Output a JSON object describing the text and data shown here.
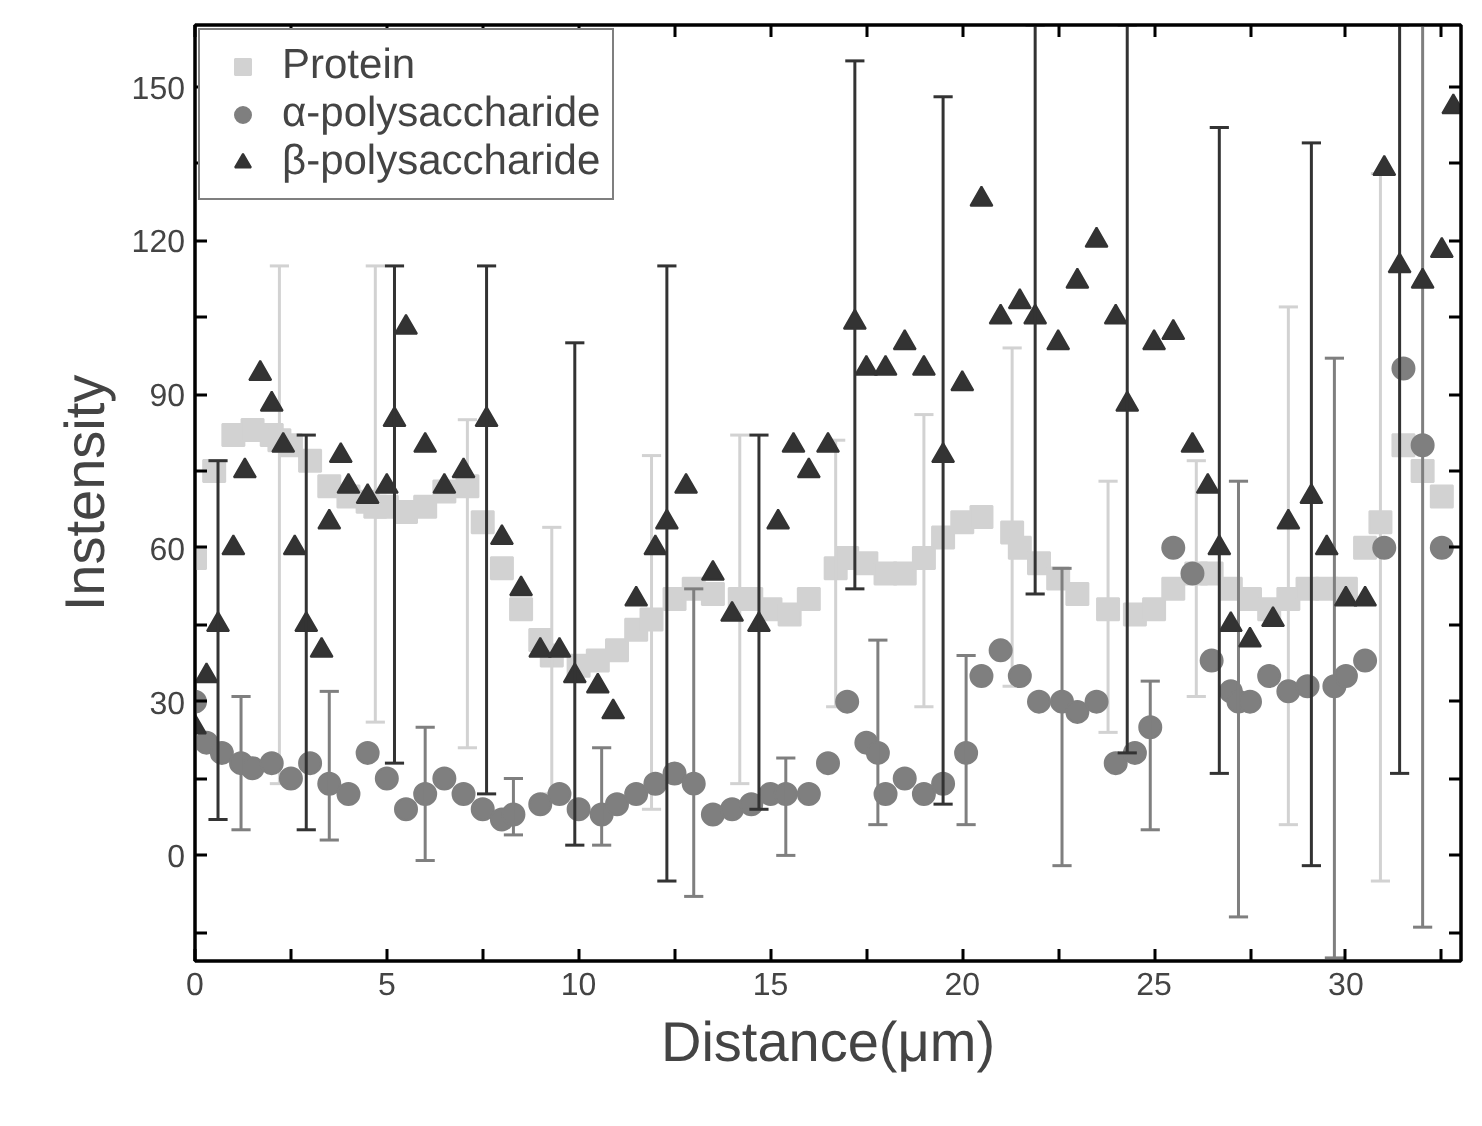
{
  "chart_data": {
    "type": "scatter",
    "xlabel": "Distance(μm)",
    "ylabel": "Instensity",
    "xlim": [
      0,
      33
    ],
    "ylim": [
      -20.6,
      162
    ],
    "xticks": [
      0,
      {
        "value": 2.5,
        "label": null
      },
      5,
      {
        "value": 7.5,
        "label": null
      },
      10,
      {
        "value": 12.5,
        "label": null
      },
      15,
      {
        "value": 17.5,
        "label": null
      },
      20,
      {
        "value": 22.5,
        "label": null
      },
      25,
      {
        "value": 27.5,
        "label": null
      },
      30,
      {
        "value": 32.5,
        "label": null
      }
    ],
    "yticks": [
      {
        "value": -15,
        "label": null
      },
      0,
      {
        "value": 15,
        "label": null
      },
      30,
      {
        "value": 45,
        "label": null
      },
      60,
      {
        "value": 75,
        "label": null
      },
      90,
      {
        "value": 105,
        "label": null
      },
      120,
      {
        "value": 135,
        "label": null
      },
      150
    ],
    "legend": "top left",
    "grid": false,
    "series": [
      {
        "name": "Protein",
        "color": "#d2d2d2",
        "marker": "square",
        "x": [
          0,
          0.5,
          1,
          1.5,
          2,
          2.2,
          2.5,
          3,
          3.5,
          4,
          4.5,
          4.7,
          5,
          5.5,
          6,
          6.5,
          7.1,
          7.5,
          8,
          8.5,
          9,
          9.3,
          10,
          10.5,
          11,
          11.5,
          11.9,
          12.5,
          13,
          13.5,
          14.2,
          14.5,
          15,
          15.5,
          16,
          16.7,
          17,
          17.5,
          18,
          18.5,
          19,
          19.5,
          20,
          20.5,
          21.3,
          21.5,
          22,
          22.5,
          23,
          23.8,
          24.5,
          25,
          25.5,
          26.1,
          26.5,
          27,
          27.5,
          28,
          28.5,
          29,
          29.5,
          30,
          30.5,
          30.9,
          31.5,
          32,
          32.5
        ],
        "values": [
          58,
          75,
          82,
          83,
          82,
          81,
          80,
          77,
          72,
          70,
          69,
          68,
          68,
          67,
          68,
          71,
          72,
          65,
          56,
          48,
          42,
          39,
          37,
          38,
          40,
          44,
          46,
          50,
          52,
          51,
          50,
          50,
          48,
          47,
          50,
          56,
          58,
          57,
          55,
          55,
          58,
          62,
          65,
          66,
          63,
          60,
          57,
          54,
          51,
          48,
          47,
          48,
          52,
          55,
          55,
          52,
          50,
          48,
          50,
          52,
          52,
          52,
          60,
          65,
          80,
          75,
          70
        ],
        "errors": [
          null,
          null,
          null,
          null,
          null,
          [
            14,
            115
          ],
          null,
          null,
          null,
          null,
          null,
          [
            26,
            115
          ],
          null,
          null,
          null,
          null,
          [
            21,
            85
          ],
          null,
          null,
          null,
          null,
          [
            12,
            64
          ],
          null,
          null,
          null,
          null,
          [
            9,
            78
          ],
          null,
          null,
          null,
          [
            14,
            82
          ],
          null,
          null,
          null,
          null,
          [
            29,
            81
          ],
          null,
          null,
          null,
          null,
          [
            29,
            86
          ],
          null,
          null,
          null,
          [
            33,
            99
          ],
          null,
          null,
          null,
          null,
          [
            24,
            73
          ],
          null,
          null,
          null,
          [
            31,
            77
          ],
          null,
          null,
          null,
          null,
          [
            6,
            107
          ],
          null,
          null,
          null,
          null,
          [
            -5,
            133
          ],
          null,
          null,
          null
        ]
      },
      {
        "name": "α-polysaccharide",
        "color": "#7f7f7f",
        "marker": "circle",
        "x": [
          0,
          0.3,
          0.7,
          1.2,
          1.5,
          2,
          2.5,
          3,
          3.5,
          4,
          4.5,
          5,
          5.5,
          6,
          6.5,
          7,
          7.5,
          8,
          8.3,
          9,
          9.5,
          10,
          10.6,
          11,
          11.5,
          12,
          12.5,
          13,
          13.5,
          14,
          14.5,
          15,
          15.4,
          16,
          16.5,
          17,
          17.5,
          17.8,
          18,
          18.5,
          19,
          19.5,
          20.1,
          20.5,
          21,
          21.5,
          22,
          22.6,
          23,
          23.5,
          24,
          24.5,
          24.9,
          25.5,
          26,
          26.5,
          27,
          27.2,
          27.5,
          28,
          28.5,
          29,
          29.7,
          30,
          30.5,
          31,
          31.5,
          32,
          32.5
        ],
        "values": [
          30,
          22,
          20,
          18,
          17,
          18,
          15,
          18,
          14,
          12,
          20,
          15,
          9,
          12,
          15,
          12,
          9,
          7,
          8,
          10,
          12,
          9,
          8,
          10,
          12,
          14,
          16,
          14,
          8,
          9,
          10,
          12,
          12,
          12,
          18,
          30,
          22,
          20,
          12,
          15,
          12,
          14,
          20,
          35,
          40,
          35,
          30,
          30,
          28,
          30,
          18,
          20,
          25,
          60,
          55,
          38,
          32,
          30,
          30,
          35,
          32,
          33,
          33,
          35,
          38,
          60,
          95,
          80,
          60
        ],
        "errors": [
          null,
          null,
          null,
          [
            5,
            31
          ],
          null,
          null,
          null,
          null,
          [
            3,
            32
          ],
          null,
          null,
          null,
          null,
          [
            -1,
            25
          ],
          null,
          null,
          null,
          null,
          [
            4,
            15
          ],
          null,
          null,
          null,
          [
            2,
            21
          ],
          null,
          null,
          null,
          null,
          [
            -8,
            52
          ],
          null,
          null,
          null,
          null,
          [
            0,
            19
          ],
          null,
          null,
          null,
          null,
          [
            6,
            42
          ],
          null,
          null,
          null,
          null,
          [
            6,
            39
          ],
          null,
          null,
          null,
          null,
          [
            -2,
            56
          ],
          null,
          null,
          null,
          null,
          [
            5,
            34
          ],
          null,
          null,
          null,
          null,
          [
            -12,
            73
          ],
          null,
          null,
          null,
          null,
          [
            -20,
            97
          ],
          null,
          null,
          null,
          null,
          [
            -14,
            162
          ],
          null
        ]
      },
      {
        "name": "β-polysaccharide",
        "color": "#333333",
        "marker": "triangle",
        "x": [
          0,
          0.3,
          0.6,
          1,
          1.3,
          1.7,
          2,
          2.3,
          2.6,
          2.9,
          3.3,
          3.5,
          3.8,
          4,
          4.5,
          5,
          5.2,
          5.5,
          6,
          6.5,
          7,
          7.6,
          8,
          8.5,
          9,
          9.5,
          9.9,
          10.5,
          10.9,
          11.5,
          12,
          12.3,
          12.8,
          13.5,
          14,
          14.7,
          15.2,
          15.6,
          16,
          16.5,
          17.2,
          17.5,
          18,
          18.5,
          19,
          19.5,
          20,
          20.5,
          21,
          21.5,
          21.9,
          22.5,
          23,
          23.5,
          24,
          24.3,
          25,
          25.5,
          26,
          26.4,
          26.7,
          27,
          27.5,
          28.1,
          28.5,
          29.1,
          29.5,
          30,
          30.5,
          31,
          31.4,
          32,
          32.5,
          32.8
        ],
        "values": [
          25,
          35,
          45,
          60,
          75,
          94,
          88,
          80,
          60,
          45,
          40,
          65,
          78,
          72,
          70,
          72,
          85,
          103,
          80,
          72,
          75,
          85,
          62,
          52,
          40,
          40,
          35,
          33,
          28,
          50,
          60,
          65,
          72,
          55,
          47,
          45,
          65,
          80,
          75,
          80,
          104,
          95,
          95,
          100,
          95,
          78,
          92,
          128,
          105,
          108,
          105,
          100,
          112,
          120,
          105,
          88,
          100,
          102,
          80,
          72,
          60,
          45,
          42,
          46,
          65,
          70,
          60,
          50,
          50,
          134,
          115,
          112,
          118,
          146
        ],
        "errors": [
          null,
          null,
          [
            7,
            77
          ],
          null,
          null,
          null,
          null,
          null,
          null,
          [
            5,
            82
          ],
          null,
          null,
          null,
          null,
          null,
          null,
          [
            18,
            115
          ],
          null,
          null,
          null,
          null,
          [
            12,
            115
          ],
          null,
          null,
          null,
          null,
          [
            2,
            100
          ],
          null,
          null,
          null,
          null,
          [
            -5,
            115
          ],
          null,
          null,
          null,
          [
            9,
            82
          ],
          null,
          null,
          null,
          null,
          [
            52,
            155
          ],
          null,
          null,
          null,
          null,
          [
            10,
            148
          ],
          null,
          null,
          null,
          null,
          [
            51,
            162
          ],
          null,
          null,
          null,
          null,
          [
            20,
            162
          ],
          null,
          null,
          null,
          null,
          [
            16,
            142
          ],
          null,
          null,
          null,
          null,
          [
            -2,
            139
          ],
          null,
          null,
          null,
          null,
          [
            16,
            162
          ],
          null,
          null,
          null
        ]
      }
    ]
  }
}
